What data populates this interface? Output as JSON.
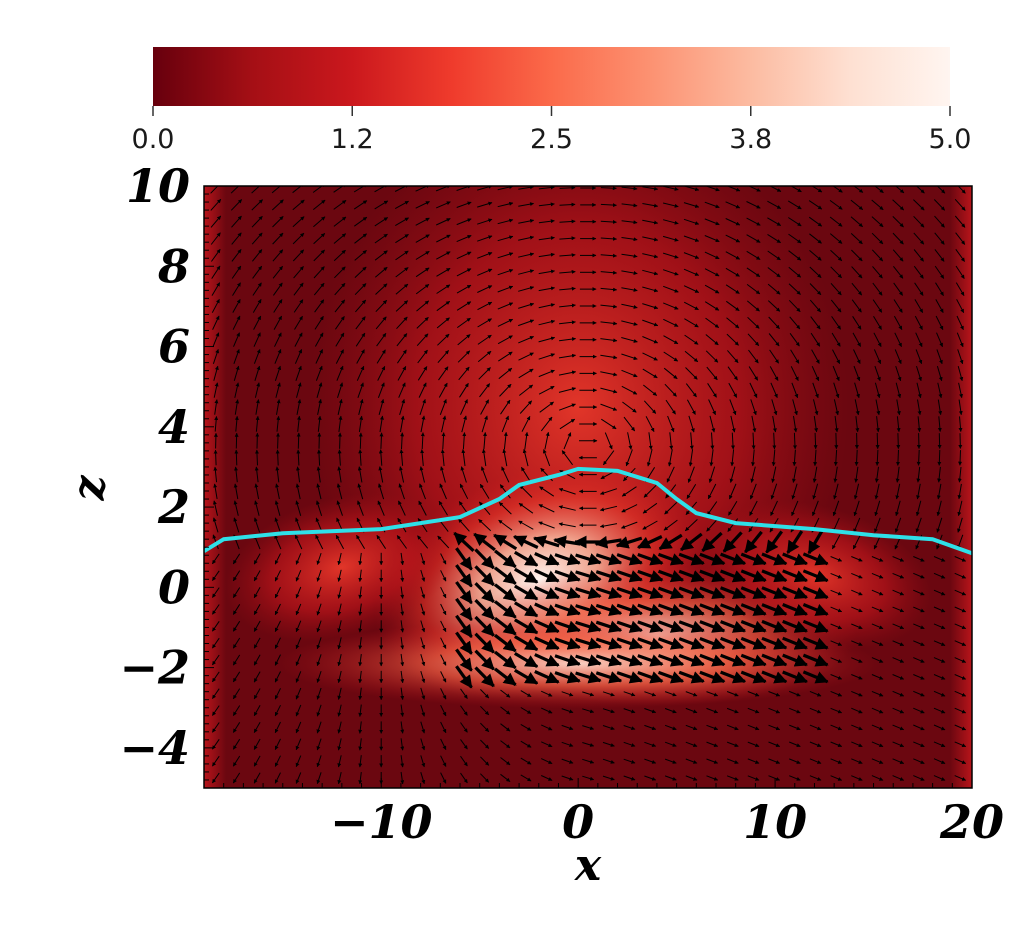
{
  "chart_data": {
    "type": "heatmap",
    "title": "",
    "xlabel": "x",
    "ylabel": "z",
    "xlim": [
      -19,
      20
    ],
    "ylim": [
      -5,
      10
    ],
    "x_ticks": [
      -10,
      0,
      10,
      20
    ],
    "y_ticks": [
      -4,
      -2,
      0,
      2,
      4,
      6,
      8,
      10
    ],
    "x_tick_labels": [
      "−10",
      "0",
      "10",
      "20"
    ],
    "y_tick_labels": [
      "−4",
      "−2",
      "0",
      "2",
      "4",
      "6",
      "8",
      "10"
    ],
    "colorbar": {
      "range": [
        0.0,
        5.0
      ],
      "tick_values": [
        0.0,
        1.25,
        2.5,
        3.75,
        5.0
      ],
      "tick_labels": [
        "0.0",
        "1.2",
        "2.5",
        "3.8",
        "5.0"
      ],
      "colormap": [
        "#67000d",
        "#a50f15",
        "#cb181d",
        "#ef3b2c",
        "#fb6a4a",
        "#fc9272",
        "#fcbba1",
        "#fee0d2",
        "#fff5f0"
      ],
      "orientation": "horizontal",
      "placement": "top"
    },
    "contour_line": {
      "color": "#2fe0e8",
      "points": [
        [
          -19,
          0.9
        ],
        [
          -18,
          1.2
        ],
        [
          -15,
          1.35
        ],
        [
          -10,
          1.45
        ],
        [
          -6,
          1.75
        ],
        [
          -4,
          2.2
        ],
        [
          -3,
          2.55
        ],
        [
          -1,
          2.8
        ],
        [
          0,
          2.95
        ],
        [
          2,
          2.9
        ],
        [
          4,
          2.6
        ],
        [
          5,
          2.2
        ],
        [
          6,
          1.85
        ],
        [
          8,
          1.6
        ],
        [
          12,
          1.45
        ],
        [
          15,
          1.3
        ],
        [
          18,
          1.2
        ],
        [
          20,
          0.85
        ]
      ]
    },
    "vector_field": {
      "color": "#000000",
      "description_free": true
    },
    "grid": false,
    "legend": "none"
  }
}
